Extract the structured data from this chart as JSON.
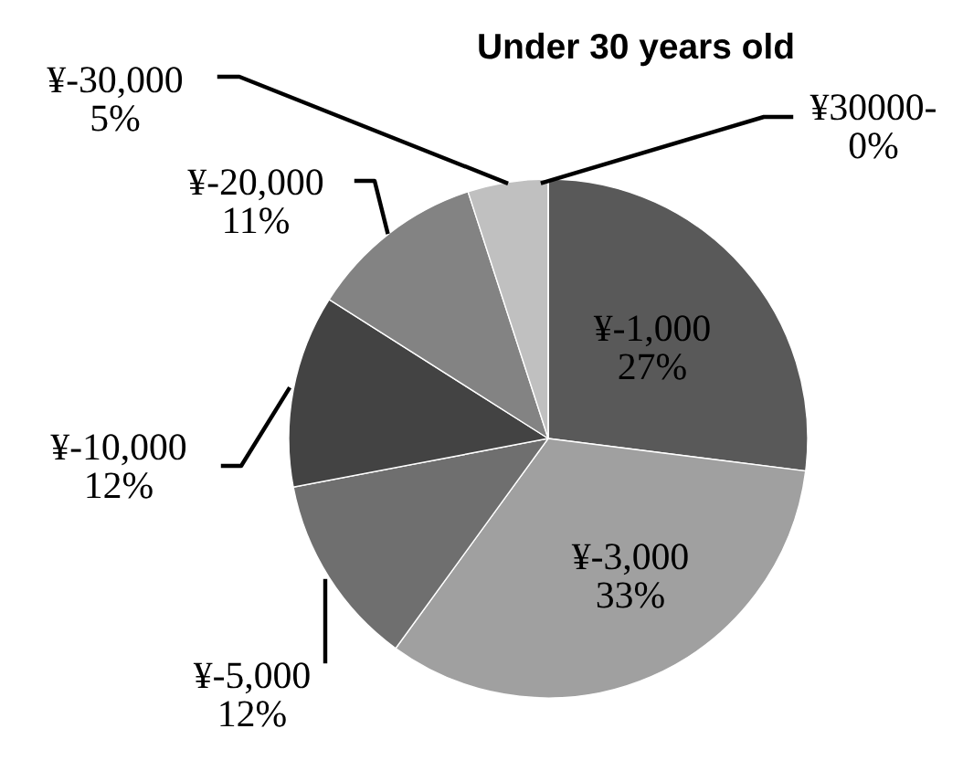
{
  "chart_data": {
    "type": "pie",
    "title": "Under 30 years old",
    "categories": [
      "¥-1,000",
      "¥-3,000",
      "¥-5,000",
      "¥-10,000",
      "¥-20,000",
      "¥-30,000",
      "¥30000-"
    ],
    "values": [
      27,
      33,
      12,
      12,
      11,
      5,
      0
    ],
    "value_labels": [
      "27%",
      "33%",
      "12%",
      "12%",
      "11%",
      "5%",
      "0%"
    ],
    "colors": [
      "#595959",
      "#a0a0a0",
      "#6f6f6f",
      "#434343",
      "#838383",
      "#c0c0c0",
      "#d9d9d9"
    ],
    "legend": false
  }
}
